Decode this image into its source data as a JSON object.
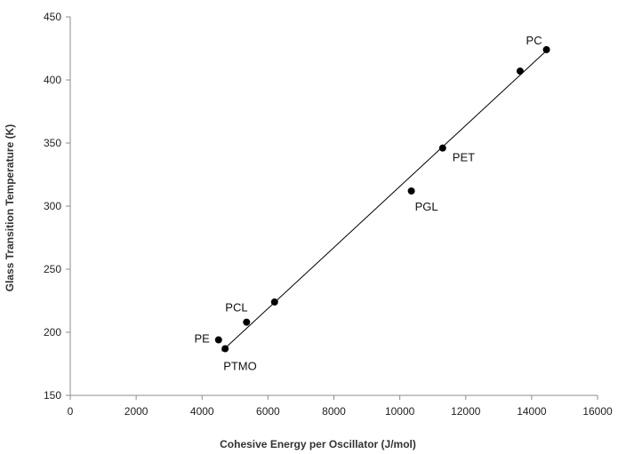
{
  "chart_data": {
    "type": "scatter",
    "title": "",
    "xlabel": "Cohesive Energy per Oscillator  (J/mol)",
    "ylabel": "Glass Transition Temperature  (K)",
    "xlim": [
      0,
      16000
    ],
    "ylim": [
      150,
      450
    ],
    "xticks": [
      0,
      2000,
      4000,
      6000,
      8000,
      10000,
      12000,
      14000,
      16000
    ],
    "yticks": [
      150,
      200,
      250,
      300,
      350,
      400,
      450
    ],
    "grid": false,
    "legend": "none",
    "marker_color": "#000000",
    "points": [
      {
        "x": 4500,
        "y": 194,
        "label": "PE"
      },
      {
        "x": 4700,
        "y": 187,
        "label": "PTMO"
      },
      {
        "x": 5350,
        "y": 208,
        "label": "PCL"
      },
      {
        "x": 6200,
        "y": 224,
        "label": ""
      },
      {
        "x": 10350,
        "y": 312,
        "label": "PGL"
      },
      {
        "x": 11300,
        "y": 346,
        "label": "PET"
      },
      {
        "x": 13650,
        "y": 407,
        "label": ""
      },
      {
        "x": 14450,
        "y": 424,
        "label": "PC"
      }
    ],
    "trendline": {
      "x": [
        4600,
        14400
      ],
      "y": [
        185,
        422
      ]
    }
  }
}
